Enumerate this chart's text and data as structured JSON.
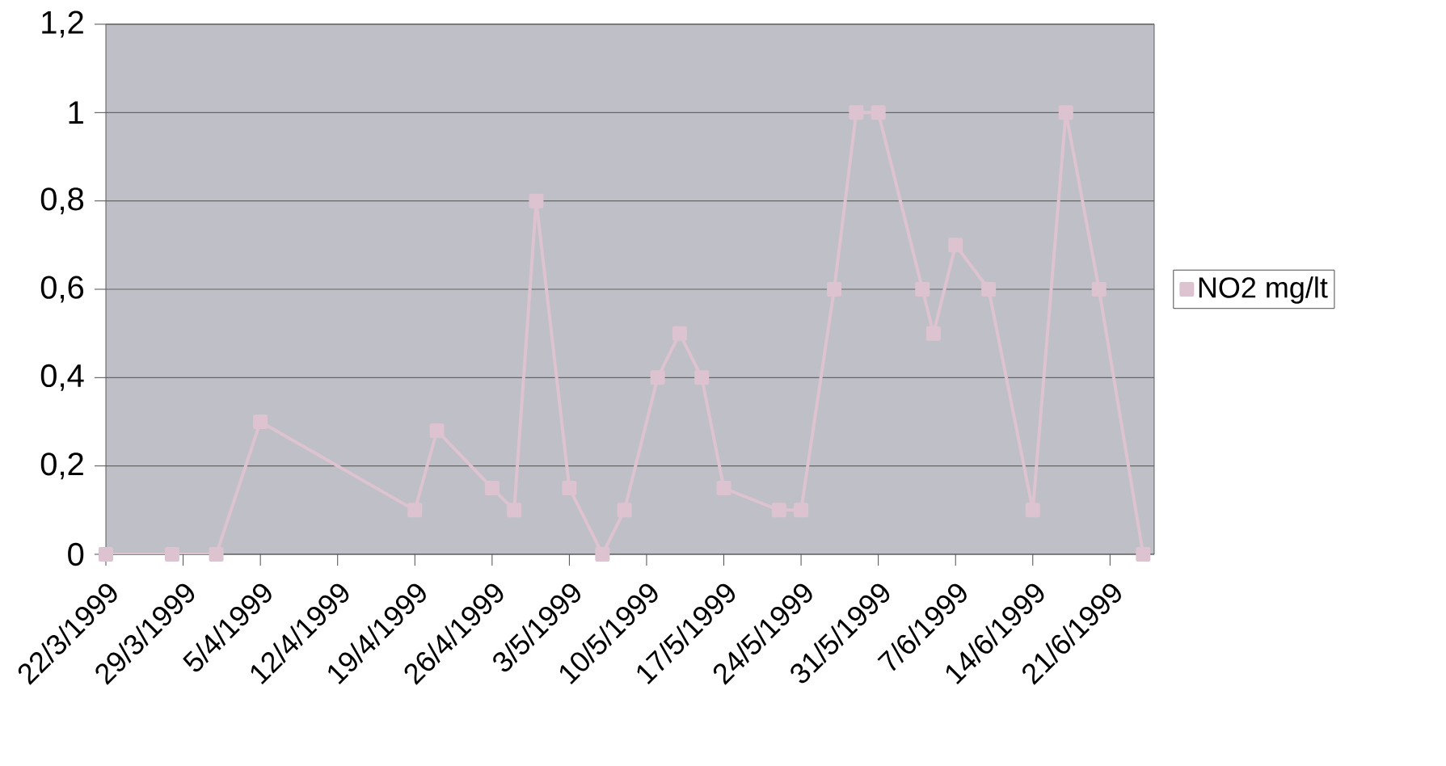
{
  "chart_data": {
    "type": "line",
    "x": [
      "1999-03-22",
      "1999-03-28",
      "1999-04-01",
      "1999-04-05",
      "1999-04-19",
      "1999-04-21",
      "1999-04-26",
      "1999-04-28",
      "1999-04-30",
      "1999-05-03",
      "1999-05-06",
      "1999-05-08",
      "1999-05-11",
      "1999-05-13",
      "1999-05-15",
      "1999-05-17",
      "1999-05-22",
      "1999-05-24",
      "1999-05-27",
      "1999-05-29",
      "1999-05-31",
      "1999-06-04",
      "1999-06-05",
      "1999-06-07",
      "1999-06-10",
      "1999-06-14",
      "1999-06-17",
      "1999-06-20",
      "1999-06-24"
    ],
    "series": [
      {
        "name": "NO2 mg/lt",
        "color": "#dcc3cf",
        "values": [
          0,
          0,
          0,
          0.3,
          0.1,
          0.28,
          0.15,
          0.1,
          0.8,
          0.15,
          0,
          0.1,
          0.4,
          0.5,
          0.4,
          0.15,
          0.1,
          0.1,
          0.6,
          1,
          1,
          0.6,
          0.5,
          0.7,
          0.6,
          0.1,
          1,
          0.6,
          0
        ]
      }
    ],
    "xlim": [
      "1999-03-22",
      "1999-06-25"
    ],
    "xticks": [
      {
        "value": "1999-03-22",
        "label": "22/3/1999"
      },
      {
        "value": "1999-03-29",
        "label": "29/3/1999"
      },
      {
        "value": "1999-04-05",
        "label": "5/4/1999"
      },
      {
        "value": "1999-04-12",
        "label": "12/4/1999"
      },
      {
        "value": "1999-04-19",
        "label": "19/4/1999"
      },
      {
        "value": "1999-04-26",
        "label": "26/4/1999"
      },
      {
        "value": "1999-05-03",
        "label": "3/5/1999"
      },
      {
        "value": "1999-05-10",
        "label": "10/5/1999"
      },
      {
        "value": "1999-05-17",
        "label": "17/5/1999"
      },
      {
        "value": "1999-05-24",
        "label": "24/5/1999"
      },
      {
        "value": "1999-05-31",
        "label": "31/5/1999"
      },
      {
        "value": "1999-06-07",
        "label": "7/6/1999"
      },
      {
        "value": "1999-06-14",
        "label": "14/6/1999"
      },
      {
        "value": "1999-06-21",
        "label": "21/6/1999"
      }
    ],
    "ylim": [
      0,
      1.2
    ],
    "yticks": [
      0,
      {
        "value": 0.2,
        "label": "0,2"
      },
      {
        "value": 0.4,
        "label": "0,4"
      },
      {
        "value": 0.6,
        "label": "0,6"
      },
      {
        "value": 0.8,
        "label": "0,8"
      },
      1,
      {
        "value": 1.2,
        "label": "1,2"
      }
    ],
    "grid": "y",
    "legend": "right",
    "marker": "square",
    "line_style": "solid"
  }
}
